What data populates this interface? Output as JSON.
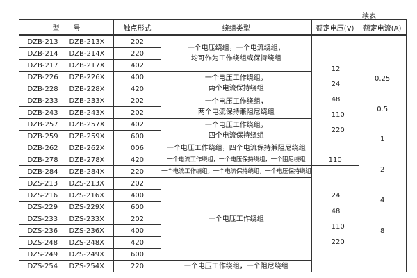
{
  "continued_label": "续表",
  "headers": {
    "model": "型　　号",
    "contact": "触点形式",
    "winding": "绕组类型",
    "voltage": "额定电压(V)",
    "current": "额定电流(A)"
  },
  "rows": [
    {
      "m1": "DZB-213",
      "m2": "DZB-213X",
      "contact": "202"
    },
    {
      "m1": "DZB-214",
      "m2": "DZB-214X",
      "contact": "220"
    },
    {
      "m1": "DZB-217",
      "m2": "DZB-217X",
      "contact": "402"
    },
    {
      "m1": "DZB-226",
      "m2": "DZB-226X",
      "contact": "400"
    },
    {
      "m1": "DZB-228",
      "m2": "DZB-228X",
      "contact": "420"
    },
    {
      "m1": "DZB-233",
      "m2": "DZB-233X",
      "contact": "202"
    },
    {
      "m1": "DZB-243",
      "m2": "DZB-243X",
      "contact": "202"
    },
    {
      "m1": "DZB-257",
      "m2": "DZB-257X",
      "contact": "402"
    },
    {
      "m1": "DZB-259",
      "m2": "DZB-259X",
      "contact": "600"
    },
    {
      "m1": "DZB-262",
      "m2": "DZB-262X",
      "contact": "006"
    },
    {
      "m1": "DZB-278",
      "m2": "DZB-278X",
      "contact": "420"
    },
    {
      "m1": "DZB-284",
      "m2": "DZB-284X",
      "contact": "220"
    },
    {
      "m1": "DZS-213",
      "m2": "DZS-213X",
      "contact": "202"
    },
    {
      "m1": "DZS-216",
      "m2": "DZS-216X",
      "contact": "400"
    },
    {
      "m1": "DZS-229",
      "m2": "DZS-229X",
      "contact": "600"
    },
    {
      "m1": "DZS-233",
      "m2": "DZS-233X",
      "contact": "202"
    },
    {
      "m1": "DZS-236",
      "m2": "DZS-236X",
      "contact": "400"
    },
    {
      "m1": "DZS-248",
      "m2": "DZS-248X",
      "contact": "420"
    },
    {
      "m1": "DZS-249",
      "m2": "DZS-249X",
      "contact": "600"
    },
    {
      "m1": "DZS-254",
      "m2": "DZS-254X",
      "contact": "220"
    }
  ],
  "windings": [
    [
      "一个电压绕组，一个电流绕组，",
      "均可作为工作绕组或保持绕组"
    ],
    [
      "一个电压工作绕组，",
      "两个电流保持绕组"
    ],
    [
      "一个电压工作绕组，",
      "两个电流保持兼阻尼绕组"
    ],
    [
      "一个电压工作绕组，",
      "四个电流保持绕组"
    ],
    [
      "一个电压工作绕组，四个电流保持兼阻尼绕组"
    ],
    [
      "一个电流工作绕组，一个电压保持绕组，一个阻尼绕组"
    ],
    [
      "一个电流工作绕组，一个电流保持绕组，一个电压保持绕组"
    ],
    [
      "一个电压工作绕组"
    ],
    [
      "一个电压工作绕组，一个阻尼绕组"
    ]
  ],
  "voltages": {
    "group1": [
      "12",
      "24",
      "48",
      "110",
      "220"
    ],
    "group2": [
      "110"
    ],
    "group3": [
      "24",
      "48",
      "110",
      "220"
    ]
  },
  "currents": [
    "0.25",
    "0.5",
    "1",
    "2",
    "4",
    "8"
  ]
}
